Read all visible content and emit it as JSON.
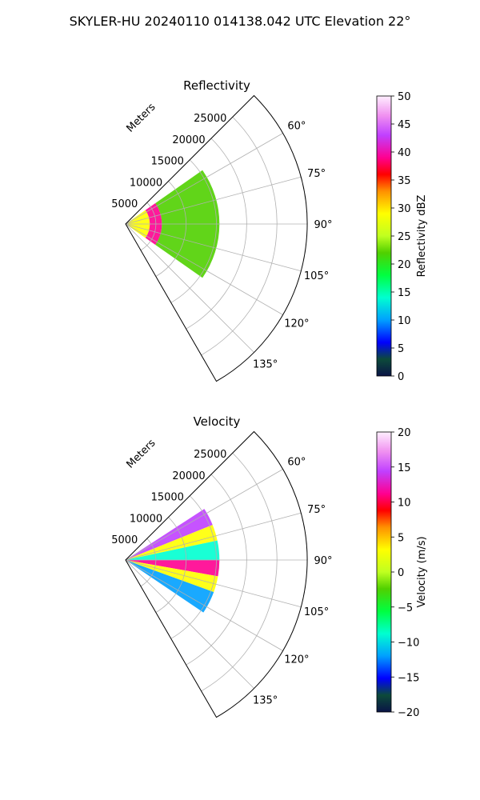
{
  "figure": {
    "suptitle": "SKYLER-HU  20240110  014138.042 UTC Elevation 22°"
  },
  "chart_data": [
    {
      "type": "heatmap",
      "subtype": "polar-sector",
      "title": "Reflectivity",
      "range_label": "Meters",
      "range_ticks": [
        5000,
        10000,
        15000,
        20000,
        25000
      ],
      "range_tick_labels": [
        "5000",
        "10000",
        "15000",
        "20000",
        "25000"
      ],
      "rlim": [
        0,
        30000
      ],
      "azimuth_range_deg": [
        45,
        150
      ],
      "azimuth_ticks_deg": [
        60,
        75,
        90,
        105,
        120,
        135
      ],
      "azimuth_tick_labels": [
        "60°",
        "75°",
        "90°",
        "105°",
        "120°",
        "135°"
      ],
      "grid": true,
      "data_extent": {
        "azimuth_deg": [
          57,
          124
        ],
        "range_m": [
          0,
          15500
        ]
      },
      "features": [
        {
          "azimuth_deg": [
            55,
            125
          ],
          "range_m": [
            0,
            4000
          ],
          "level": 28
        },
        {
          "azimuth_deg": [
            55,
            125
          ],
          "range_m": [
            4000,
            6000
          ],
          "level": 38
        },
        {
          "azimuth_deg": [
            55,
            125
          ],
          "range_m": [
            6000,
            15500
          ],
          "level": 20
        }
      ],
      "colorbar": {
        "label": "Reflectivity dBZ",
        "vmin": 0,
        "vmax": 50,
        "ticks": [
          0,
          5,
          10,
          15,
          20,
          25,
          30,
          35,
          40,
          45,
          50
        ],
        "tick_labels": [
          "0",
          "5",
          "10",
          "15",
          "20",
          "25",
          "30",
          "35",
          "40",
          "45",
          "50"
        ]
      }
    },
    {
      "type": "heatmap",
      "subtype": "polar-sector",
      "title": "Velocity",
      "range_label": "Meters",
      "range_ticks": [
        5000,
        10000,
        15000,
        20000,
        25000
      ],
      "range_tick_labels": [
        "5000",
        "10000",
        "15000",
        "20000",
        "25000"
      ],
      "rlim": [
        0,
        30000
      ],
      "azimuth_range_deg": [
        45,
        150
      ],
      "azimuth_ticks_deg": [
        60,
        75,
        90,
        105,
        120,
        135
      ],
      "azimuth_tick_labels": [
        "60°",
        "75°",
        "90°",
        "105°",
        "120°",
        "135°"
      ],
      "grid": true,
      "data_extent": {
        "azimuth_deg": [
          57,
          124
        ],
        "range_m": [
          0,
          15500
        ]
      },
      "features": [
        {
          "azimuth_deg": [
            57,
            68
          ],
          "range_m": [
            0,
            15500
          ],
          "level": 12
        },
        {
          "azimuth_deg": [
            68,
            78
          ],
          "range_m": [
            0,
            15500
          ],
          "level": 2
        },
        {
          "azimuth_deg": [
            78,
            90
          ],
          "range_m": [
            0,
            15500
          ],
          "level": -8
        },
        {
          "azimuth_deg": [
            90,
            100
          ],
          "range_m": [
            0,
            15500
          ],
          "level": 10
        },
        {
          "azimuth_deg": [
            100,
            110
          ],
          "range_m": [
            0,
            15500
          ],
          "level": 2
        },
        {
          "azimuth_deg": [
            110,
            124
          ],
          "range_m": [
            0,
            15500
          ],
          "level": -10
        }
      ],
      "colorbar": {
        "label": "Velocity (m/s)",
        "vmin": -20,
        "vmax": 20,
        "ticks": [
          -20,
          -15,
          -10,
          -5,
          0,
          5,
          10,
          15,
          20
        ],
        "tick_labels": [
          "−20",
          "−15",
          "−10",
          "−5",
          "0",
          "5",
          "10",
          "15",
          "20"
        ]
      }
    }
  ]
}
